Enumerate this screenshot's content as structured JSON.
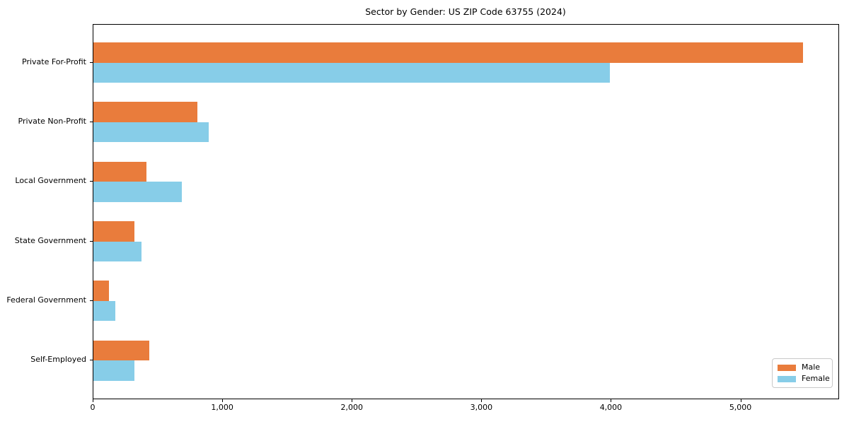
{
  "chart_data": {
    "type": "bar",
    "orientation": "horizontal",
    "title": "Sector by Gender: US ZIP Code 63755 (2024)",
    "categories": [
      "Private For-Profit",
      "Private Non-Profit",
      "Local Government",
      "State Government",
      "Federal Government",
      "Self-Employed"
    ],
    "series": [
      {
        "name": "Male",
        "color": "#e97c3c",
        "values": [
          5480,
          805,
          410,
          317,
          120,
          430
        ]
      },
      {
        "name": "Female",
        "color": "#87cde8",
        "values": [
          3985,
          890,
          683,
          370,
          170,
          315
        ]
      }
    ],
    "xlabel": "",
    "ylabel": "",
    "xlim": [
      0,
      5756
    ],
    "x_ticks": [
      0,
      1000,
      2000,
      3000,
      4000,
      5000
    ],
    "x_tick_labels": [
      "0",
      "1,000",
      "2,000",
      "3,000",
      "4,000",
      "5,000"
    ],
    "legend": {
      "position": "lower-right",
      "entries": [
        "Male",
        "Female"
      ]
    },
    "grid": false,
    "background_color": "#ffffff",
    "spine_color": "#000000"
  }
}
